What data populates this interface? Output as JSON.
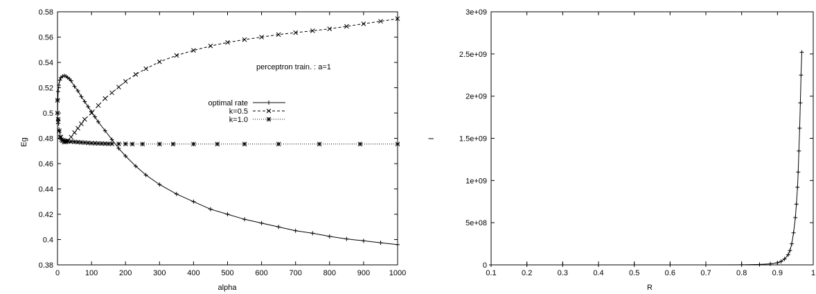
{
  "chart_data": [
    {
      "type": "line",
      "title": "",
      "annotation": "perceptron train. : a=1",
      "xlabel": "alpha",
      "ylabel": "Eg",
      "xlim": [
        0,
        1000
      ],
      "ylim": [
        0.38,
        0.58
      ],
      "xticks": [
        "0",
        "100",
        "200",
        "300",
        "400",
        "500",
        "600",
        "700",
        "800",
        "900",
        "1000"
      ],
      "yticks": [
        "0.38",
        "0.4",
        "0.42",
        "0.44",
        "0.46",
        "0.48",
        "0.5",
        "0.52",
        "0.54",
        "0.56",
        "0.58"
      ],
      "grid": false,
      "legend_position": "right",
      "series": [
        {
          "name": "optimal rate",
          "marker": "+",
          "line": "solid",
          "x": [
            0,
            1,
            2,
            4,
            7,
            10,
            15,
            20,
            25,
            30,
            35,
            40,
            50,
            60,
            70,
            80,
            90,
            100,
            110,
            120,
            140,
            160,
            180,
            200,
            230,
            260,
            300,
            350,
            400,
            450,
            500,
            550,
            600,
            650,
            700,
            750,
            800,
            850,
            900,
            950,
            1000
          ],
          "y": [
            0.5,
            0.511,
            0.517,
            0.522,
            0.526,
            0.528,
            0.529,
            0.5295,
            0.529,
            0.528,
            0.527,
            0.5255,
            0.521,
            0.5175,
            0.513,
            0.509,
            0.505,
            0.501,
            0.497,
            0.493,
            0.486,
            0.479,
            0.472,
            0.466,
            0.458,
            0.451,
            0.4435,
            0.436,
            0.43,
            0.424,
            0.42,
            0.416,
            0.413,
            0.41,
            0.407,
            0.405,
            0.4025,
            0.4005,
            0.399,
            0.3975,
            0.396
          ]
        },
        {
          "name": "k=0.5",
          "marker": "x",
          "line": "dashed",
          "x": [
            0,
            2,
            5,
            10,
            15,
            20,
            25,
            30,
            40,
            50,
            60,
            70,
            80,
            100,
            120,
            140,
            160,
            180,
            200,
            230,
            260,
            300,
            350,
            400,
            450,
            500,
            550,
            600,
            650,
            700,
            750,
            800,
            850,
            900,
            950,
            1000
          ],
          "y": [
            0.5,
            0.493,
            0.486,
            0.481,
            0.478,
            0.477,
            0.4772,
            0.4782,
            0.481,
            0.4845,
            0.488,
            0.4915,
            0.495,
            0.5,
            0.506,
            0.5115,
            0.516,
            0.5205,
            0.525,
            0.5305,
            0.535,
            0.5405,
            0.5455,
            0.5495,
            0.553,
            0.5558,
            0.558,
            0.56,
            0.562,
            0.5635,
            0.565,
            0.5665,
            0.5685,
            0.5705,
            0.5725,
            0.5745
          ]
        },
        {
          "name": "k=1.0",
          "marker": "*",
          "line": "dotted",
          "x": [
            0,
            2,
            5,
            8,
            12,
            16,
            20,
            25,
            30,
            40,
            50,
            60,
            70,
            80,
            90,
            100,
            110,
            120,
            130,
            140,
            150,
            160,
            180,
            200,
            220,
            250,
            300,
            340,
            400,
            470,
            550,
            650,
            770,
            890,
            1000
          ],
          "y": [
            0.51,
            0.495,
            0.486,
            0.481,
            0.479,
            0.4785,
            0.478,
            0.4778,
            0.4776,
            0.4774,
            0.4772,
            0.477,
            0.4768,
            0.4766,
            0.4764,
            0.4762,
            0.4761,
            0.476,
            0.4759,
            0.4758,
            0.4757,
            0.4757,
            0.4756,
            0.4756,
            0.4755,
            0.4755,
            0.4755,
            0.4755,
            0.4755,
            0.4755,
            0.4755,
            0.4755,
            0.4755,
            0.4755,
            0.4755
          ]
        }
      ]
    },
    {
      "type": "line",
      "title": "",
      "xlabel": "R",
      "ylabel": "I",
      "xlim": [
        0.1,
        1.0
      ],
      "ylim": [
        0,
        3000000000
      ],
      "xticks": [
        "0.1",
        "0.2",
        "0.3",
        "0.4",
        "0.5",
        "0.6",
        "0.7",
        "0.8",
        "0.9",
        "1"
      ],
      "yticks": [
        "0",
        "5e+08",
        "1e+09",
        "1.5e+09",
        "2e+09",
        "2.5e+09",
        "3e+09"
      ],
      "grid": false,
      "series": [
        {
          "marker": "+",
          "line": "solid",
          "x": [
            0.1,
            0.2,
            0.3,
            0.4,
            0.5,
            0.6,
            0.7,
            0.8,
            0.85,
            0.88,
            0.9,
            0.91,
            0.92,
            0.93,
            0.935,
            0.94,
            0.945,
            0.95,
            0.953,
            0.956,
            0.958,
            0.96,
            0.962,
            0.964,
            0.966,
            0.968
          ],
          "y": [
            0,
            0,
            0,
            0,
            0,
            0,
            0,
            1000000,
            5000000,
            12000000,
            25000000,
            40000000,
            70000000,
            120000000,
            170000000,
            250000000,
            380000000,
            560000000,
            720000000,
            920000000,
            1100000000,
            1350000000,
            1620000000,
            1920000000,
            2250000000,
            2520000000
          ]
        }
      ]
    }
  ]
}
